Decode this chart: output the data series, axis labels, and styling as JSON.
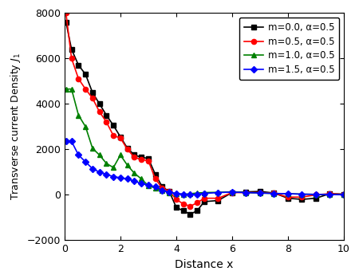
{
  "xlabel": "Distance x",
  "ylabel": "Transverse current Density $J_1$",
  "xlim": [
    0,
    10
  ],
  "ylim": [
    -2000,
    8000
  ],
  "yticks": [
    -2000,
    0,
    2000,
    4000,
    6000,
    8000
  ],
  "xticks": [
    0,
    2,
    4,
    6,
    8,
    10
  ],
  "series": [
    {
      "label": "m=0.0, α=0.5",
      "color": "black",
      "marker": "s",
      "x": [
        0.05,
        0.25,
        0.5,
        0.75,
        1.0,
        1.25,
        1.5,
        1.75,
        2.0,
        2.25,
        2.5,
        2.75,
        3.0,
        3.25,
        3.5,
        3.75,
        4.0,
        4.25,
        4.5,
        4.75,
        5.0,
        5.5,
        6.0,
        6.5,
        7.0,
        7.5,
        8.0,
        8.5,
        9.0,
        9.5,
        10.0
      ],
      "y": [
        7600,
        6400,
        5700,
        5300,
        4500,
        4000,
        3500,
        3050,
        2550,
        2050,
        1750,
        1650,
        1600,
        900,
        350,
        150,
        -550,
        -700,
        -850,
        -700,
        -300,
        -250,
        100,
        130,
        150,
        80,
        -150,
        -200,
        -150,
        50,
        30
      ]
    },
    {
      "label": "m=0.5, α=0.5",
      "color": "red",
      "marker": "o",
      "x": [
        0.05,
        0.25,
        0.5,
        0.75,
        1.0,
        1.25,
        1.5,
        1.75,
        2.0,
        2.25,
        2.5,
        2.75,
        3.0,
        3.25,
        3.5,
        3.75,
        4.0,
        4.25,
        4.5,
        4.75,
        5.0,
        5.5,
        6.0,
        6.5,
        7.0,
        7.5,
        8.0,
        8.5,
        9.0,
        9.5,
        10.0
      ],
      "y": [
        8000,
        6000,
        5100,
        4650,
        4250,
        3650,
        3200,
        2600,
        2500,
        2000,
        1650,
        1550,
        1500,
        700,
        300,
        150,
        -200,
        -400,
        -500,
        -350,
        -150,
        -150,
        100,
        100,
        100,
        70,
        -100,
        -100,
        0,
        50,
        20
      ]
    },
    {
      "label": "m=1.0, α=0.5",
      "color": "green",
      "marker": "^",
      "x": [
        0.05,
        0.25,
        0.5,
        0.75,
        1.0,
        1.25,
        1.5,
        1.75,
        2.0,
        2.25,
        2.5,
        2.75,
        3.0,
        3.25,
        3.5,
        3.75,
        4.0,
        4.25,
        4.5,
        4.75,
        5.0,
        5.5,
        6.0,
        6.5,
        7.0,
        7.5,
        8.0,
        8.5,
        9.0,
        9.5,
        10.0
      ],
      "y": [
        4650,
        4650,
        3500,
        3000,
        2050,
        1750,
        1380,
        1200,
        1750,
        1300,
        950,
        700,
        400,
        300,
        180,
        100,
        50,
        20,
        50,
        80,
        100,
        110,
        130,
        100,
        80,
        60,
        50,
        30,
        20,
        10,
        5
      ]
    },
    {
      "label": "m=1.5, α=0.5",
      "color": "blue",
      "marker": "D",
      "x": [
        0.05,
        0.25,
        0.5,
        0.75,
        1.0,
        1.25,
        1.5,
        1.75,
        2.0,
        2.25,
        2.5,
        2.75,
        3.0,
        3.25,
        3.5,
        3.75,
        4.0,
        4.25,
        4.5,
        4.75,
        5.0,
        5.5,
        6.0,
        6.5,
        7.0,
        7.5,
        8.0,
        8.5,
        9.0,
        9.5,
        10.0
      ],
      "y": [
        2350,
        2350,
        1750,
        1450,
        1150,
        1000,
        900,
        800,
        750,
        700,
        600,
        500,
        430,
        350,
        200,
        120,
        60,
        30,
        10,
        30,
        60,
        100,
        120,
        100,
        80,
        60,
        50,
        30,
        20,
        10,
        5
      ]
    }
  ],
  "figsize": [
    4.5,
    3.5
  ],
  "dpi": 100,
  "legend_fontsize": 8.5,
  "axis_fontsize": 10,
  "tick_fontsize": 9,
  "linewidth": 1.2,
  "markersize": 4.5
}
